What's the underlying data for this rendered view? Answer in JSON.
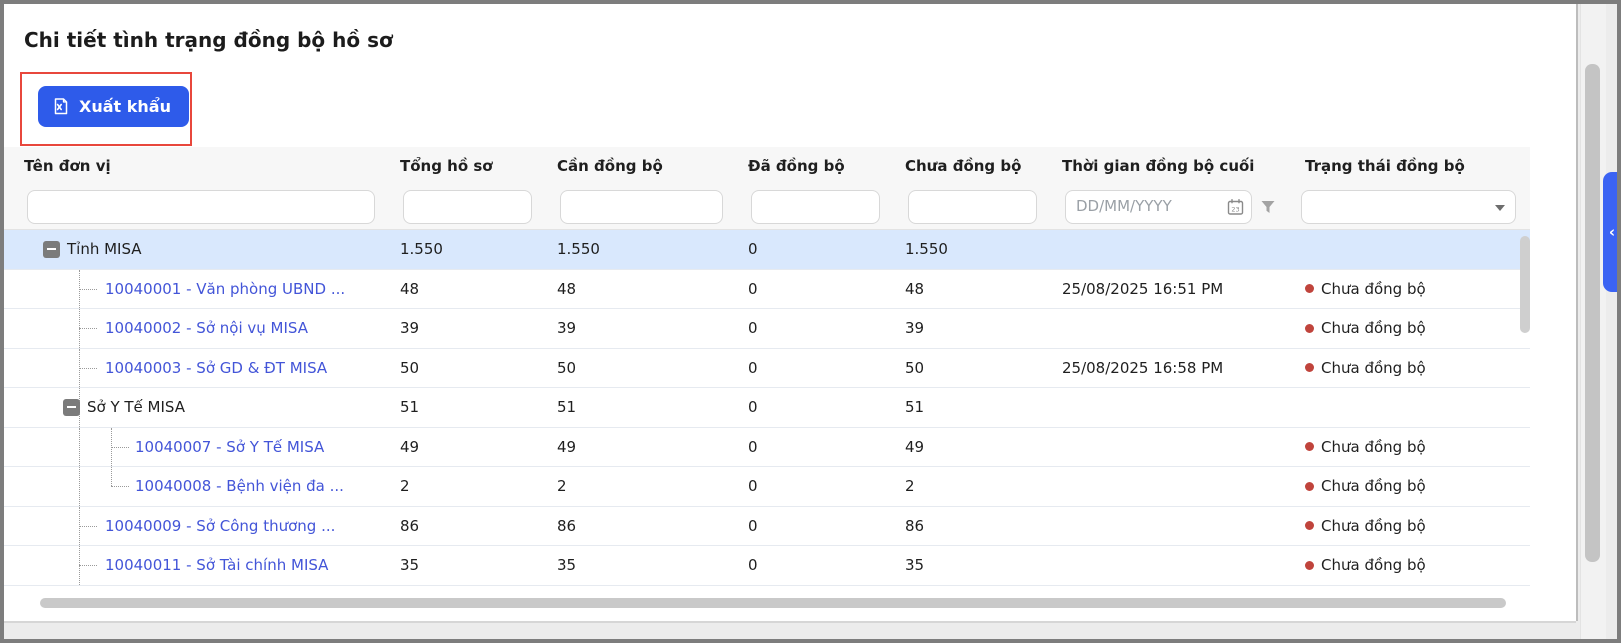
{
  "page": {
    "title": "Chi tiết tình trạng đồng bộ hồ sơ"
  },
  "toolbar": {
    "export_label": "Xuất khẩu"
  },
  "annotation": {
    "highlight_color": "#e8473c"
  },
  "colors": {
    "primary_button": "#2e5bea",
    "link": "#4355d8",
    "selected_row_bg": "#d9e8fd",
    "status_dot": "#c0443c"
  },
  "table": {
    "columns": {
      "unit": "Tên đơn vị",
      "total": "Tổng hồ sơ",
      "need_sync": "Cần đồng bộ",
      "synced": "Đã đồng bộ",
      "not_synced": "Chưa đồng bộ",
      "last_sync_time": "Thời gian đồng bộ cuối",
      "sync_status": "Trạng thái đồng bộ"
    },
    "filters": {
      "unit_value": "",
      "total_value": "",
      "need_sync_value": "",
      "synced_value": "",
      "not_synced_value": "",
      "date_placeholder": "DD/MM/YYYY",
      "calendar_day": "23",
      "status_selected_value": ""
    },
    "rows": [
      {
        "type": "group",
        "level": 0,
        "selected": true,
        "name": "Tỉnh MISA",
        "total": "1.550",
        "need": "1.550",
        "done": "0",
        "not_done": "1.550",
        "last_sync": "",
        "status": ""
      },
      {
        "type": "leaf",
        "level": 1,
        "selected": false,
        "name": "10040001 - Văn phòng UBND ...",
        "total": "48",
        "need": "48",
        "done": "0",
        "not_done": "48",
        "last_sync": "25/08/2025 16:51 PM",
        "status": "Chưa đồng bộ"
      },
      {
        "type": "leaf",
        "level": 1,
        "selected": false,
        "name": "10040002 - Sở nội vụ MISA",
        "total": "39",
        "need": "39",
        "done": "0",
        "not_done": "39",
        "last_sync": "",
        "status": "Chưa đồng bộ"
      },
      {
        "type": "leaf",
        "level": 1,
        "selected": false,
        "name": "10040003 - Sở GD & ĐT MISA",
        "total": "50",
        "need": "50",
        "done": "0",
        "not_done": "50",
        "last_sync": "25/08/2025 16:58 PM",
        "status": "Chưa đồng bộ"
      },
      {
        "type": "group",
        "level": 1,
        "selected": false,
        "name": "Sở Y Tế MISA",
        "total": "51",
        "need": "51",
        "done": "0",
        "not_done": "51",
        "last_sync": "",
        "status": ""
      },
      {
        "type": "leaf",
        "level": 2,
        "selected": false,
        "name": "10040007 - Sở Y Tế MISA",
        "total": "49",
        "need": "49",
        "done": "0",
        "not_done": "49",
        "last_sync": "",
        "status": "Chưa đồng bộ"
      },
      {
        "type": "leaf",
        "level": 2,
        "selected": false,
        "branch_end": true,
        "name": "10040008 - Bệnh viện đa ...",
        "total": "2",
        "need": "2",
        "done": "0",
        "not_done": "2",
        "last_sync": "",
        "status": "Chưa đồng bộ"
      },
      {
        "type": "leaf",
        "level": 1,
        "selected": false,
        "name": "10040009 - Sở Công thương ...",
        "total": "86",
        "need": "86",
        "done": "0",
        "not_done": "86",
        "last_sync": "",
        "status": "Chưa đồng bộ"
      },
      {
        "type": "leaf",
        "level": 1,
        "selected": false,
        "name": "10040011 - Sở Tài chính MISA",
        "total": "35",
        "need": "35",
        "done": "0",
        "not_done": "35",
        "last_sync": "",
        "status": "Chưa đồng bộ"
      }
    ]
  }
}
